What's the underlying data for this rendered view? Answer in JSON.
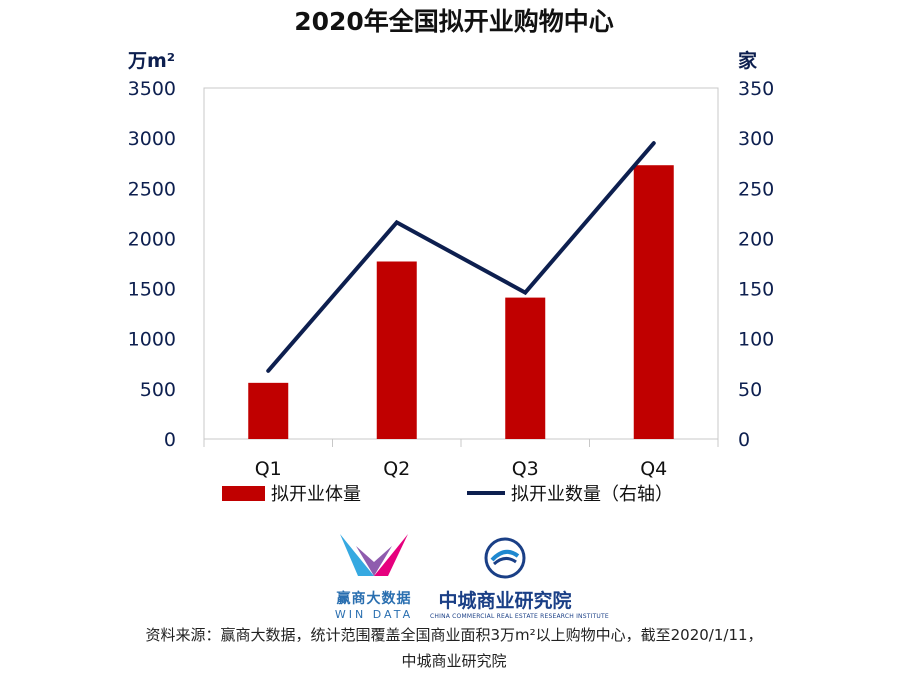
{
  "title": "2020年全国拟开业购物中心",
  "units": {
    "left": "万m²",
    "right": "家"
  },
  "chart_data": {
    "type": "bar",
    "title": "2020年全国拟开业购物中心",
    "categories": [
      "Q1",
      "Q2",
      "Q3",
      "Q4"
    ],
    "series": [
      {
        "name": "拟开业体量",
        "type": "bar",
        "axis": "left",
        "color": "#c00000",
        "values": [
          560,
          1770,
          1410,
          2730
        ]
      },
      {
        "name": "拟开业数量（右轴）",
        "type": "line",
        "axis": "right",
        "color": "#0d1f4f",
        "values": [
          68,
          216,
          146,
          295
        ]
      }
    ],
    "y_left": {
      "unit": "万m²",
      "ylim": [
        0,
        3500
      ],
      "ticks": [
        0,
        500,
        1000,
        1500,
        2000,
        2500,
        3000,
        3500
      ]
    },
    "y_right": {
      "unit": "家",
      "ylim": [
        0,
        350
      ],
      "ticks": [
        0,
        50,
        100,
        150,
        200,
        250,
        300,
        350
      ]
    },
    "grid": false,
    "legend": "bottom"
  },
  "legend": {
    "bar_label": "拟开业体量",
    "line_label": "拟开业数量（右轴）"
  },
  "logos": {
    "win_cn": "赢商大数据",
    "win_en": "WIN DATA",
    "zc_cn": "中城商业研究院",
    "zc_en": "CHINA COMMERCIAL REAL ESTATE RESEARCH INSTITUTE"
  },
  "source": {
    "line1": "资料来源：赢商大数据，统计范围覆盖全国商业面积3万m²以上购物中心，截至2020/1/11，",
    "line2": "中城商业研究院"
  }
}
